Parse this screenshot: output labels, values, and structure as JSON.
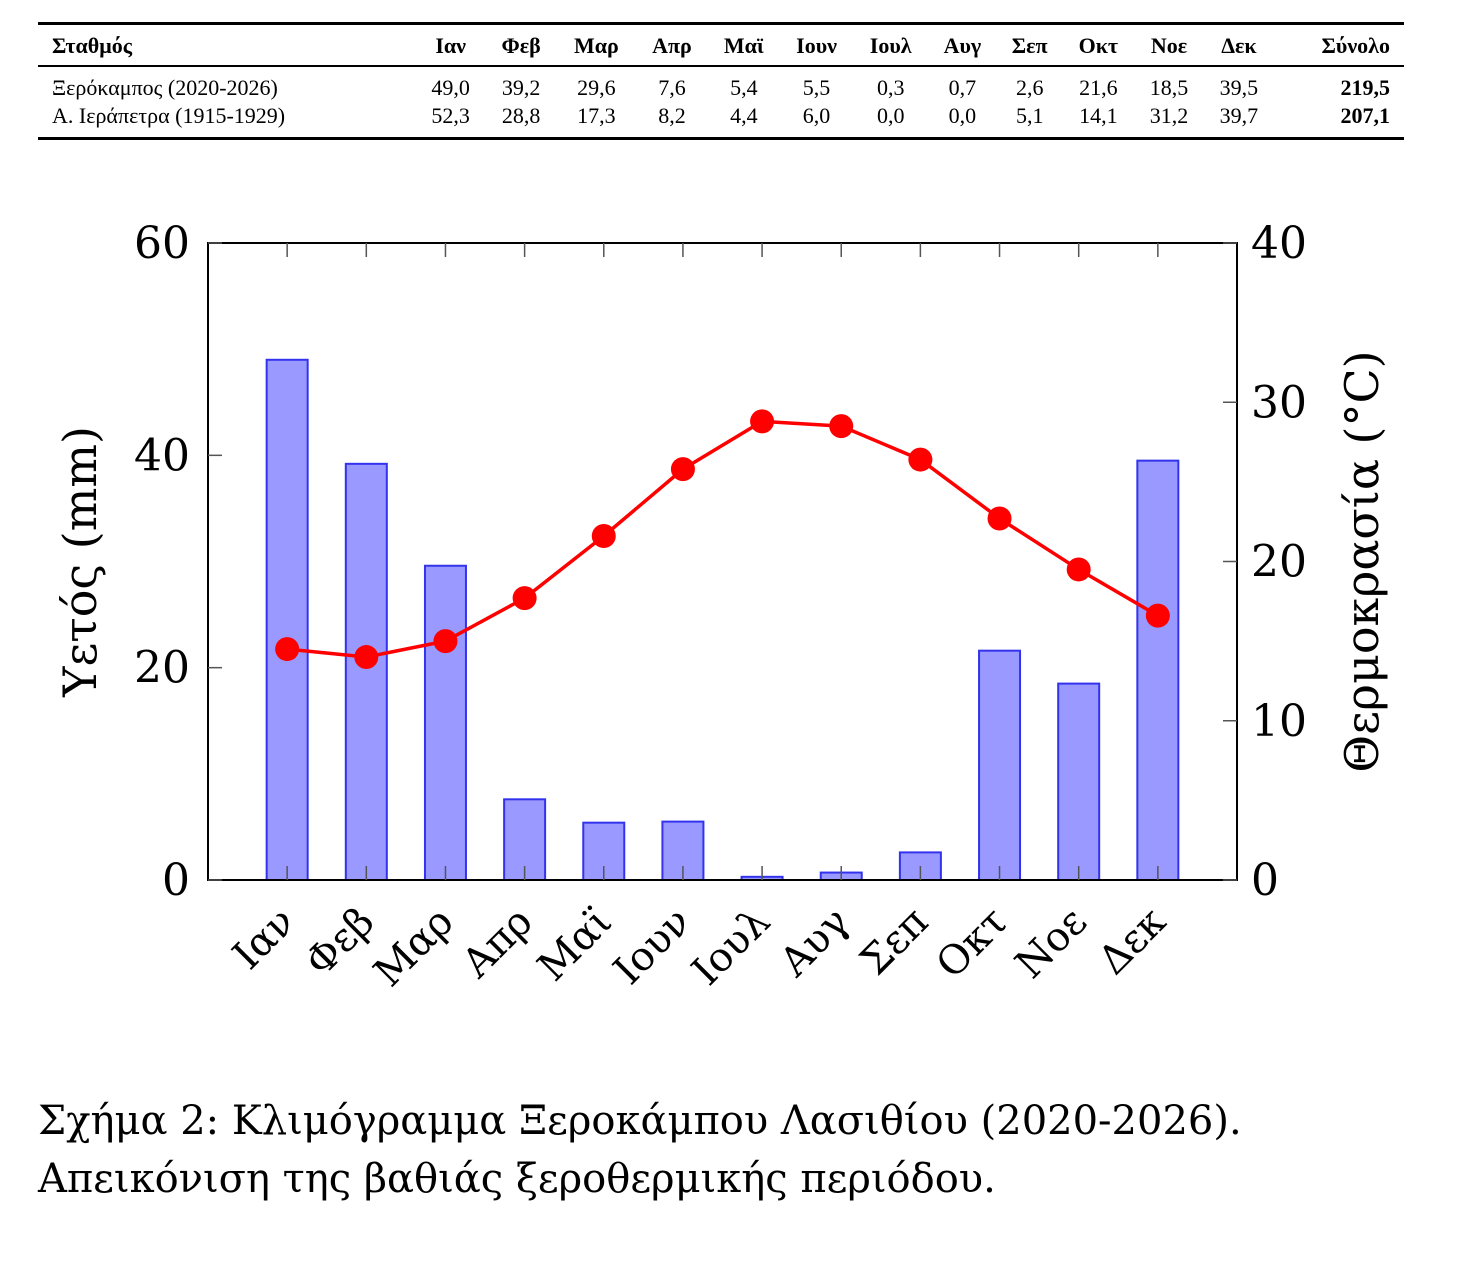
{
  "table": {
    "headers": [
      "Σταθμός",
      "Ιαν",
      "Φεβ",
      "Μαρ",
      "Απρ",
      "Μαϊ",
      "Ιουν",
      "Ιουλ",
      "Αυγ",
      "Σεπ",
      "Οκτ",
      "Νοε",
      "Δεκ",
      "Σύνολο"
    ],
    "rows": [
      {
        "station": "Ξερόκαμπος (2020-2026)",
        "values": [
          "49,0",
          "39,2",
          "29,6",
          "7,6",
          "5,4",
          "5,5",
          "0,3",
          "0,7",
          "2,6",
          "21,6",
          "18,5",
          "39,5"
        ],
        "total": "219,5"
      },
      {
        "station": "Α. Ιεράπετρα (1915-1929)",
        "values": [
          "52,3",
          "28,8",
          "17,3",
          "8,2",
          "4,4",
          "6,0",
          "0,0",
          "0,0",
          "5,1",
          "14,1",
          "31,2",
          "39,7"
        ],
        "total": "207,1"
      }
    ]
  },
  "chart_data": {
    "type": "bar+line",
    "categories": [
      "Ιαν",
      "Φεβ",
      "Μαρ",
      "Απρ",
      "Μαϊ",
      "Ιουν",
      "Ιουλ",
      "Αυγ",
      "Σεπ",
      "Οκτ",
      "Νοε",
      "Δεκ"
    ],
    "series": [
      {
        "name": "Υετός",
        "type": "bar",
        "axis": "left",
        "color": "#9999ff",
        "stroke": "#3333ee",
        "values": [
          49.0,
          39.2,
          29.6,
          7.6,
          5.4,
          5.5,
          0.3,
          0.7,
          2.6,
          21.6,
          18.5,
          39.5
        ]
      },
      {
        "name": "Θερμοκρασία",
        "type": "line",
        "axis": "right",
        "color": "#ff0000",
        "values": [
          14.5,
          14.0,
          15.0,
          17.7,
          21.6,
          25.8,
          28.8,
          28.5,
          26.4,
          22.7,
          19.5,
          16.6
        ]
      }
    ],
    "y_left": {
      "label": "Υετός (mm)",
      "lim": [
        0,
        60
      ],
      "ticks": [
        0,
        20,
        40,
        60
      ]
    },
    "y_right": {
      "label": "Θερμοκρασία (°C)",
      "lim": [
        0,
        40
      ],
      "ticks": [
        0,
        10,
        20,
        30,
        40
      ]
    },
    "grid": false
  },
  "caption": {
    "line1": "Σχήμα 2: Κλιμόγραμμα Ξεροκάμπου Λασιθίου (2020-2026).",
    "line2": "Απεικόνιση της βαθιάς ξεροθερμικής περιόδου."
  }
}
